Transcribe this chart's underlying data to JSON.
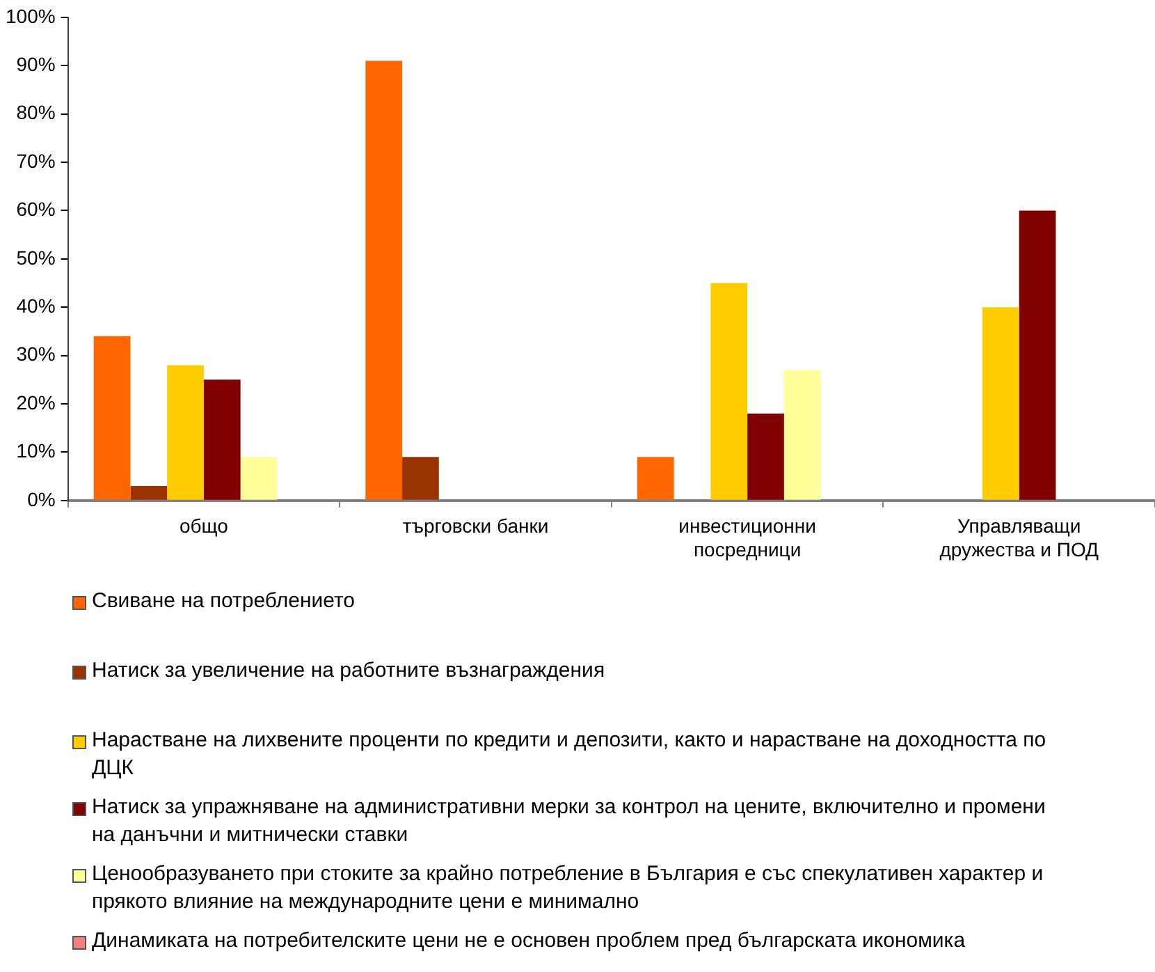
{
  "chart_data": {
    "type": "bar",
    "categories": [
      "общо",
      "търговски банки",
      "инвестиционни посредници",
      "Управляващи дружества и ПОД"
    ],
    "series": [
      {
        "name": "Свиване на потреблението",
        "color": "#ff6600",
        "values": [
          34,
          91,
          9,
          0
        ]
      },
      {
        "name": "Натиск за увеличение на работните възнаграждения",
        "color": "#993300",
        "values": [
          3,
          9,
          0,
          0
        ]
      },
      {
        "name": "Нарастване на лихвените проценти по кредити и депозити, както и нарастване на доходността по ДЦК",
        "color": "#ffcc00",
        "values": [
          28,
          0,
          45,
          40
        ]
      },
      {
        "name": "Натиск за упражняване на административни мерки за контрол на цените, включително и промени на данъчни и митнически ставки",
        "color": "#800000",
        "values": [
          25,
          0,
          18,
          60
        ]
      },
      {
        "name": "Ценообразуването при стоките за крайно потребление в България е със спекулативен характер и прякото влияние на международните цени е минимално",
        "color": "#ffff99",
        "values": [
          9,
          0,
          27,
          0
        ]
      },
      {
        "name": "Динамиката на потребителските цени не е основен проблем пред българската икономика",
        "color": "#f08080",
        "values": [
          0,
          0,
          0,
          0
        ]
      }
    ],
    "ylim": [
      0,
      100
    ],
    "yticks": [
      {
        "value": 0,
        "label": "0%"
      },
      {
        "value": 10,
        "label": "10%"
      },
      {
        "value": 20,
        "label": "20%"
      },
      {
        "value": 30,
        "label": "30%"
      },
      {
        "value": 40,
        "label": "40%"
      },
      {
        "value": 50,
        "label": "50%"
      },
      {
        "value": 60,
        "label": "60%"
      },
      {
        "value": 70,
        "label": "70%"
      },
      {
        "value": 80,
        "label": "80%"
      },
      {
        "value": 90,
        "label": "90%"
      },
      {
        "value": 100,
        "label": "100%"
      }
    ],
    "grid": false,
    "legend": "bottom"
  }
}
